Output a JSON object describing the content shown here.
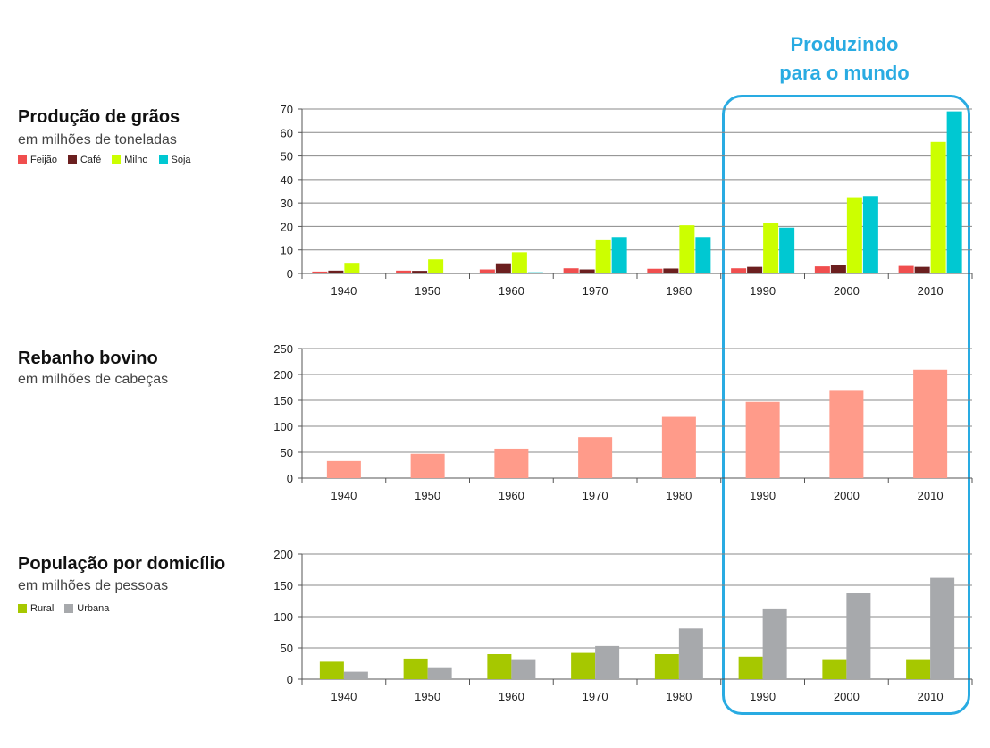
{
  "highlight": {
    "line1": "Produzindo",
    "line2": "para o mundo",
    "color": "#29abe2"
  },
  "chart_data": [
    {
      "type": "bar",
      "title": "Produção de grãos",
      "subtitle": "em milhões de toneladas",
      "categories": [
        "1940",
        "1950",
        "1960",
        "1970",
        "1980",
        "1990",
        "2000",
        "2010"
      ],
      "ylim": [
        0,
        70
      ],
      "yticks": [
        0,
        10,
        20,
        30,
        40,
        50,
        60,
        70
      ],
      "grid": true,
      "legend_position": "left",
      "series": [
        {
          "name": "Feijão",
          "color": "#f04e4e",
          "values": [
            0.8,
            1.2,
            1.7,
            2.2,
            2.0,
            2.2,
            3.0,
            3.2
          ]
        },
        {
          "name": "Café",
          "color": "#6b1f1f",
          "values": [
            1.2,
            1.1,
            4.3,
            1.7,
            2.1,
            2.8,
            3.6,
            2.8
          ]
        },
        {
          "name": "Milho",
          "color": "#ccff00",
          "values": [
            4.5,
            6.0,
            9.0,
            14.5,
            20.5,
            21.5,
            32.5,
            56.0
          ]
        },
        {
          "name": "Soja",
          "color": "#00c8d2",
          "values": [
            0,
            0,
            0.5,
            15.5,
            15.5,
            19.5,
            33.0,
            69.0
          ]
        }
      ]
    },
    {
      "type": "bar",
      "title": "Rebanho bovino",
      "subtitle": "em milhões de cabeças",
      "categories": [
        "1940",
        "1950",
        "1960",
        "1970",
        "1980",
        "1990",
        "2000",
        "2010"
      ],
      "ylim": [
        0,
        250
      ],
      "yticks": [
        0,
        50,
        100,
        150,
        200,
        250
      ],
      "grid": true,
      "series": [
        {
          "color": "#ff9b8a",
          "values": [
            33,
            47,
            57,
            79,
            118,
            147,
            170,
            209
          ]
        }
      ]
    },
    {
      "type": "bar",
      "title": "População por domicílio",
      "subtitle": "em milhões de pessoas",
      "categories": [
        "1940",
        "1950",
        "1960",
        "1970",
        "1980",
        "1990",
        "2000",
        "2010"
      ],
      "ylim": [
        0,
        200
      ],
      "yticks": [
        0,
        50,
        100,
        150,
        200
      ],
      "grid": true,
      "legend_position": "left",
      "series": [
        {
          "name": "Rural",
          "color": "#a6c800",
          "values": [
            28,
            33,
            40,
            42,
            40,
            36,
            32,
            32
          ]
        },
        {
          "name": "Urbana",
          "color": "#a7a9ac",
          "values": [
            12,
            19,
            32,
            53,
            81,
            113,
            138,
            162
          ]
        }
      ]
    }
  ]
}
